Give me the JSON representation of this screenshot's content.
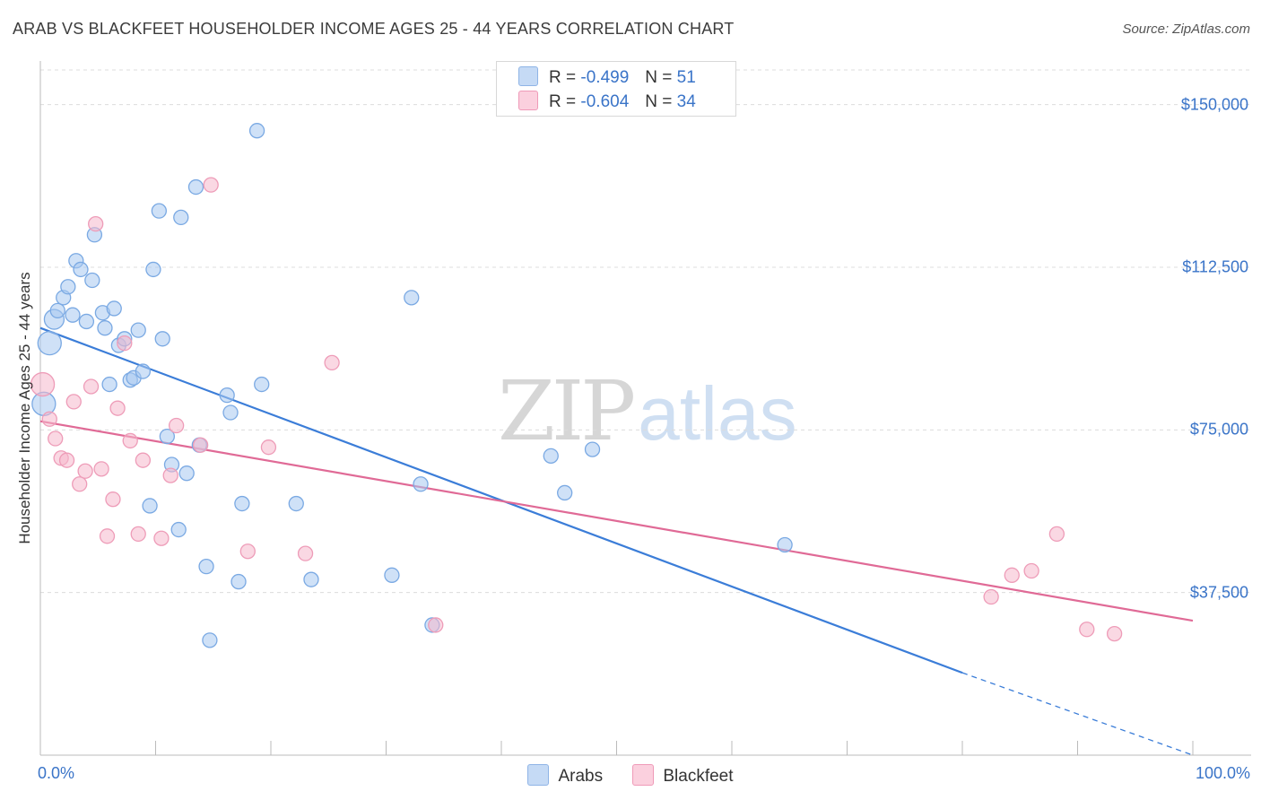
{
  "header": {
    "title": "ARAB VS BLACKFEET HOUSEHOLDER INCOME AGES 25 - 44 YEARS CORRELATION CHART",
    "source": "Source: ZipAtlas.com"
  },
  "watermark": {
    "zip": "ZIP",
    "atlas": "atlas"
  },
  "legend": {
    "arabs": {
      "r_label": "R =",
      "r_value": "-0.499",
      "n_label": "N =",
      "n_value": "51",
      "color": "#a8c8f0"
    },
    "blackfeet": {
      "r_label": "R =",
      "r_value": "-0.604",
      "n_label": "N =",
      "n_value": "34",
      "color": "#f5b8cc"
    }
  },
  "bottom_legend": {
    "arabs": "Arabs",
    "blackfeet": "Blackfeet"
  },
  "chart_data": {
    "type": "scatter",
    "title": "ARAB VS BLACKFEET HOUSEHOLDER INCOME AGES 25 - 44 YEARS CORRELATION CHART",
    "xlabel": "",
    "ylabel": "Householder Income Ages 25 - 44 years",
    "xlim": [
      0,
      100
    ],
    "ylim": [
      0,
      158000
    ],
    "x_tick_labels": [
      "0.0%",
      "100.0%"
    ],
    "y_ticks": [
      37500,
      75000,
      112500,
      150000
    ],
    "y_tick_labels": [
      "$37,500",
      "$75,000",
      "$112,500",
      "$150,000"
    ],
    "grid": true,
    "legend_position": "top-center",
    "series": [
      {
        "name": "Arabs",
        "color": "#3b7dd8",
        "fill": "#a8c8f0",
        "trendline": {
          "x": [
            0,
            80
          ],
          "y": [
            98500,
            19000
          ],
          "dashed_extension_to": [
            100,
            0
          ]
        },
        "points": [
          {
            "x": 0.3,
            "y": 81000,
            "s": 3
          },
          {
            "x": 0.8,
            "y": 95000,
            "s": 3
          },
          {
            "x": 1.2,
            "y": 100500,
            "s": 2
          },
          {
            "x": 1.5,
            "y": 102500,
            "s": 1
          },
          {
            "x": 2.0,
            "y": 105500,
            "s": 1
          },
          {
            "x": 2.4,
            "y": 108000,
            "s": 1
          },
          {
            "x": 2.8,
            "y": 101500,
            "s": 1
          },
          {
            "x": 3.1,
            "y": 114000,
            "s": 1
          },
          {
            "x": 3.5,
            "y": 112000,
            "s": 1
          },
          {
            "x": 4.0,
            "y": 100000,
            "s": 1
          },
          {
            "x": 4.5,
            "y": 109500,
            "s": 1
          },
          {
            "x": 4.7,
            "y": 120000,
            "s": 1
          },
          {
            "x": 5.4,
            "y": 102000,
            "s": 1
          },
          {
            "x": 5.6,
            "y": 98500,
            "s": 1
          },
          {
            "x": 6.0,
            "y": 85500,
            "s": 1
          },
          {
            "x": 6.4,
            "y": 103000,
            "s": 1
          },
          {
            "x": 6.8,
            "y": 94500,
            "s": 1
          },
          {
            "x": 7.3,
            "y": 96000,
            "s": 1
          },
          {
            "x": 7.8,
            "y": 86500,
            "s": 1
          },
          {
            "x": 8.1,
            "y": 87000,
            "s": 1
          },
          {
            "x": 8.5,
            "y": 98000,
            "s": 1
          },
          {
            "x": 8.9,
            "y": 88500,
            "s": 1
          },
          {
            "x": 9.5,
            "y": 57500,
            "s": 1
          },
          {
            "x": 9.8,
            "y": 112000,
            "s": 1
          },
          {
            "x": 10.3,
            "y": 125500,
            "s": 1
          },
          {
            "x": 10.6,
            "y": 96000,
            "s": 1
          },
          {
            "x": 11.0,
            "y": 73500,
            "s": 1
          },
          {
            "x": 11.4,
            "y": 67000,
            "s": 1
          },
          {
            "x": 12.0,
            "y": 52000,
            "s": 1
          },
          {
            "x": 12.2,
            "y": 124000,
            "s": 1
          },
          {
            "x": 12.7,
            "y": 65000,
            "s": 1
          },
          {
            "x": 13.5,
            "y": 131000,
            "s": 1
          },
          {
            "x": 13.8,
            "y": 71500,
            "s": 1
          },
          {
            "x": 14.4,
            "y": 43500,
            "s": 1
          },
          {
            "x": 14.7,
            "y": 26500,
            "s": 1
          },
          {
            "x": 16.2,
            "y": 83000,
            "s": 1
          },
          {
            "x": 16.5,
            "y": 79000,
            "s": 1
          },
          {
            "x": 17.2,
            "y": 40000,
            "s": 1
          },
          {
            "x": 17.5,
            "y": 58000,
            "s": 1
          },
          {
            "x": 18.8,
            "y": 144000,
            "s": 1
          },
          {
            "x": 19.2,
            "y": 85500,
            "s": 1
          },
          {
            "x": 22.2,
            "y": 58000,
            "s": 1
          },
          {
            "x": 23.5,
            "y": 40500,
            "s": 1
          },
          {
            "x": 30.5,
            "y": 41500,
            "s": 1
          },
          {
            "x": 32.2,
            "y": 105500,
            "s": 1
          },
          {
            "x": 33.0,
            "y": 62500,
            "s": 1
          },
          {
            "x": 34.0,
            "y": 30000,
            "s": 1
          },
          {
            "x": 44.3,
            "y": 69000,
            "s": 1
          },
          {
            "x": 45.5,
            "y": 60500,
            "s": 1
          },
          {
            "x": 47.9,
            "y": 70500,
            "s": 1
          },
          {
            "x": 64.6,
            "y": 48500,
            "s": 1
          }
        ]
      },
      {
        "name": "Blackfeet",
        "color": "#e06a96",
        "fill": "#f5b8cc",
        "trendline": {
          "x": [
            0,
            100
          ],
          "y": [
            77000,
            31000
          ]
        },
        "points": [
          {
            "x": 0.2,
            "y": 85500,
            "s": 3
          },
          {
            "x": 0.8,
            "y": 77500,
            "s": 1
          },
          {
            "x": 1.3,
            "y": 73000,
            "s": 1
          },
          {
            "x": 1.8,
            "y": 68500,
            "s": 1
          },
          {
            "x": 2.3,
            "y": 68000,
            "s": 1
          },
          {
            "x": 2.9,
            "y": 81500,
            "s": 1
          },
          {
            "x": 3.4,
            "y": 62500,
            "s": 1
          },
          {
            "x": 3.9,
            "y": 65500,
            "s": 1
          },
          {
            "x": 4.4,
            "y": 85000,
            "s": 1
          },
          {
            "x": 4.8,
            "y": 122500,
            "s": 1
          },
          {
            "x": 5.3,
            "y": 66000,
            "s": 1
          },
          {
            "x": 5.8,
            "y": 50500,
            "s": 1
          },
          {
            "x": 6.3,
            "y": 59000,
            "s": 1
          },
          {
            "x": 6.7,
            "y": 80000,
            "s": 1
          },
          {
            "x": 7.3,
            "y": 95000,
            "s": 1
          },
          {
            "x": 7.8,
            "y": 72500,
            "s": 1
          },
          {
            "x": 8.5,
            "y": 51000,
            "s": 1
          },
          {
            "x": 8.9,
            "y": 68000,
            "s": 1
          },
          {
            "x": 10.5,
            "y": 50000,
            "s": 1
          },
          {
            "x": 11.3,
            "y": 64500,
            "s": 1
          },
          {
            "x": 11.8,
            "y": 76000,
            "s": 1
          },
          {
            "x": 13.9,
            "y": 71500,
            "s": 1
          },
          {
            "x": 14.8,
            "y": 131500,
            "s": 1
          },
          {
            "x": 18.0,
            "y": 47000,
            "s": 1
          },
          {
            "x": 19.8,
            "y": 71000,
            "s": 1
          },
          {
            "x": 23.0,
            "y": 46500,
            "s": 1
          },
          {
            "x": 25.3,
            "y": 90500,
            "s": 1
          },
          {
            "x": 34.3,
            "y": 30000,
            "s": 1
          },
          {
            "x": 82.5,
            "y": 36500,
            "s": 1
          },
          {
            "x": 84.3,
            "y": 41500,
            "s": 1
          },
          {
            "x": 86.0,
            "y": 42500,
            "s": 1
          },
          {
            "x": 88.2,
            "y": 51000,
            "s": 1
          },
          {
            "x": 90.8,
            "y": 29000,
            "s": 1
          },
          {
            "x": 93.2,
            "y": 28000,
            "s": 1
          }
        ]
      }
    ]
  }
}
